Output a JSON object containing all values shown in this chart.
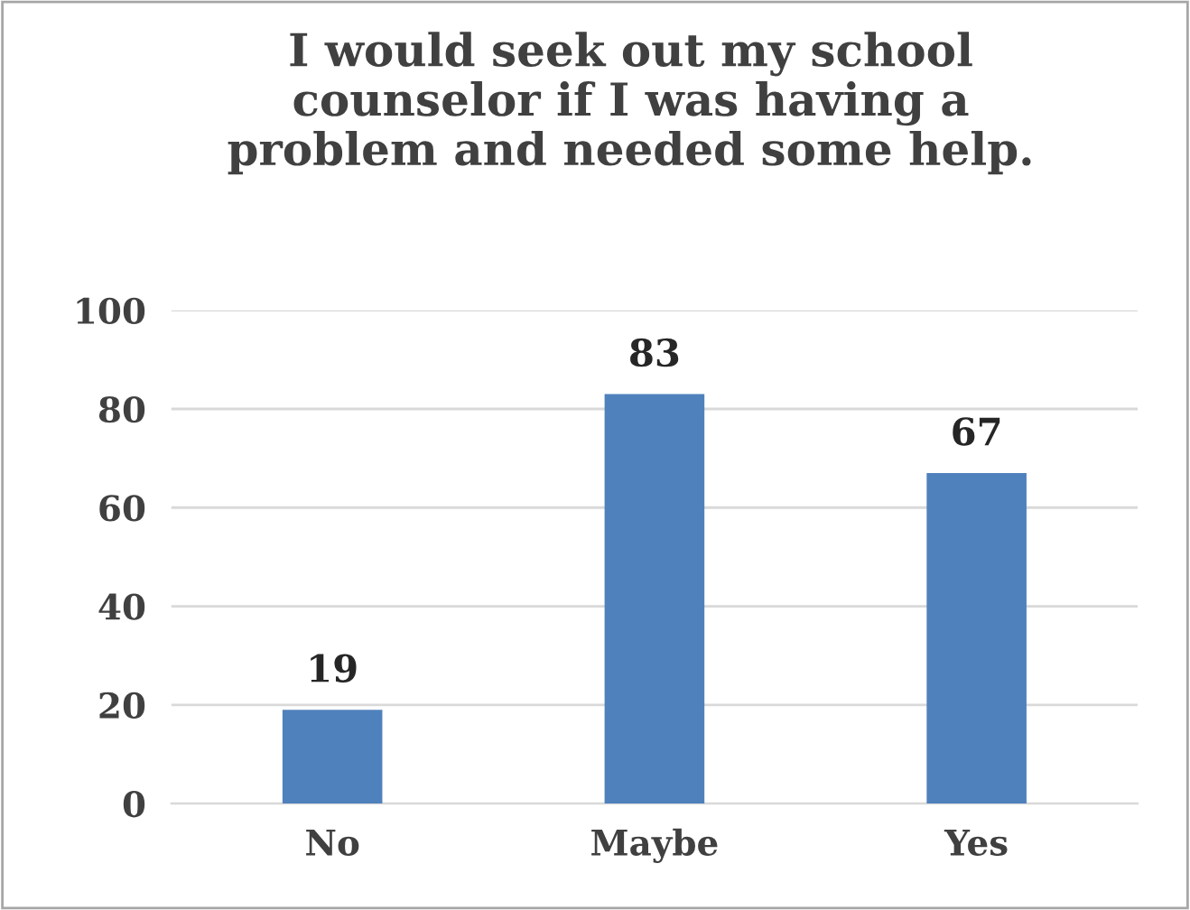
{
  "chart_data": {
    "type": "bar",
    "title": "I would seek out my school\ncounselor if I was having a\nproblem and needed some help.",
    "categories": [
      "No",
      "Maybe",
      "Yes"
    ],
    "values": [
      19,
      83,
      67
    ],
    "color": "#4f81bd",
    "ylim": [
      0,
      100
    ],
    "yticks": [
      0,
      20,
      40,
      60,
      80,
      100
    ],
    "grid": "y",
    "data_labels": true
  }
}
